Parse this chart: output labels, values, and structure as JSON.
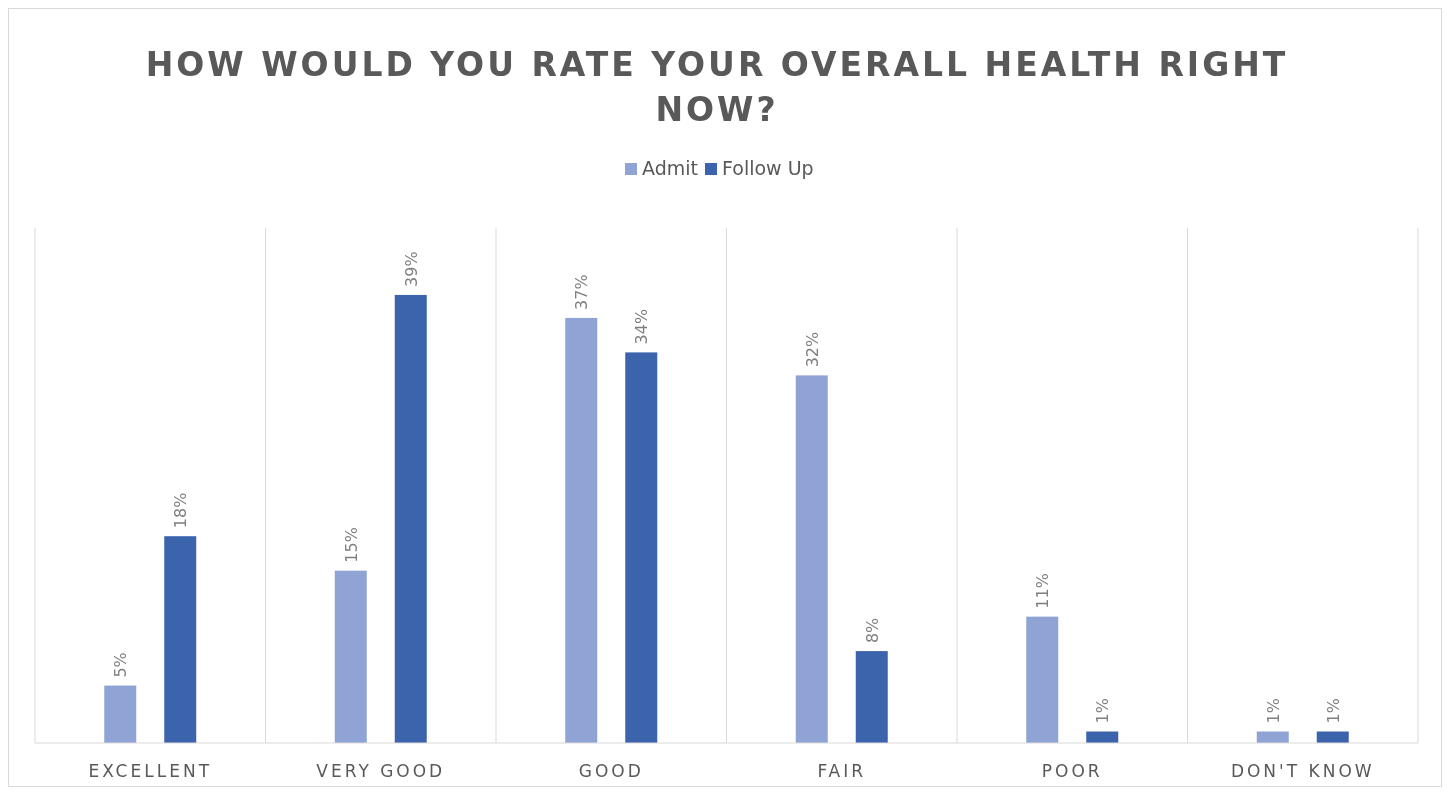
{
  "chart_data": {
    "type": "bar",
    "title": "HOW WOULD YOU RATE YOUR OVERALL HEALTH RIGHT NOW?",
    "categories": [
      "EXCELLENT",
      "VERY GOOD",
      "GOOD",
      "FAIR",
      "POOR",
      "DON'T KNOW"
    ],
    "series": [
      {
        "name": "Admit",
        "color": "#8fa3d5",
        "values": [
          5,
          15,
          37,
          32,
          11,
          1
        ],
        "value_labels": [
          "5%",
          "15%",
          "37%",
          "32%",
          "11%",
          "1%"
        ]
      },
      {
        "name": "Follow Up",
        "color": "#3c64ad",
        "values": [
          18,
          39,
          34,
          8,
          1,
          1
        ],
        "value_labels": [
          "18%",
          "39%",
          "34%",
          "8%",
          "1%",
          "1%"
        ]
      }
    ],
    "grid": "x",
    "legend": "top"
  }
}
